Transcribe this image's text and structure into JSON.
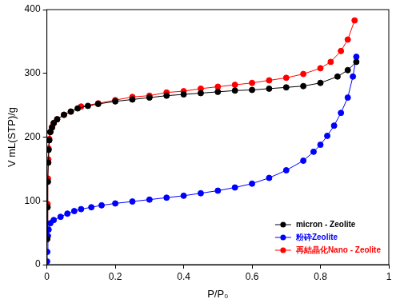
{
  "chart_data": {
    "type": "line",
    "x_label": "P/P₀",
    "y_label": "V mL(STP)/g",
    "xlim": [
      0,
      1
    ],
    "xticks": [
      0,
      0.2,
      0.4,
      0.6,
      0.8,
      1
    ],
    "ylim": [
      0,
      400
    ],
    "yticks": [
      0,
      100,
      200,
      300,
      400
    ],
    "grid": false,
    "legend": "lower right",
    "series": [
      {
        "name": "micron - Zeolite",
        "color": "#000000",
        "marker": "circle",
        "line_style": "solid",
        "x": [
          0.001,
          0.002,
          0.003,
          0.004,
          0.005,
          0.007,
          0.01,
          0.015,
          0.02,
          0.03,
          0.05,
          0.07,
          0.09,
          0.12,
          0.15,
          0.2,
          0.25,
          0.3,
          0.35,
          0.4,
          0.45,
          0.5,
          0.55,
          0.6,
          0.65,
          0.7,
          0.75,
          0.8,
          0.85,
          0.88,
          0.905
        ],
        "values": [
          40,
          90,
          130,
          160,
          180,
          195,
          208,
          215,
          222,
          228,
          235,
          240,
          245,
          249,
          252,
          256,
          259,
          262,
          265,
          267,
          269,
          271,
          273,
          274,
          276,
          278,
          280,
          285,
          295,
          305,
          318
        ]
      },
      {
        "name": "粉砕Zeolite",
        "color": "#0000ff",
        "marker": "circle",
        "line_style": "solid",
        "x": [
          0.0005,
          0.001,
          0.003,
          0.005,
          0.01,
          0.02,
          0.04,
          0.06,
          0.08,
          0.1,
          0.13,
          0.16,
          0.2,
          0.25,
          0.3,
          0.35,
          0.4,
          0.45,
          0.5,
          0.55,
          0.6,
          0.65,
          0.7,
          0.75,
          0.78,
          0.8,
          0.82,
          0.84,
          0.86,
          0.88,
          0.895,
          0.905
        ],
        "values": [
          5,
          20,
          45,
          55,
          65,
          70,
          75,
          80,
          84,
          87,
          90,
          93,
          96,
          99,
          102,
          105,
          108,
          112,
          116,
          121,
          127,
          136,
          148,
          163,
          177,
          188,
          202,
          218,
          238,
          262,
          295,
          326
        ]
      },
      {
        "name": "再結晶化Nano - Zeolite",
        "color": "#ff0000",
        "marker": "circle",
        "line_style": "solid",
        "x": [
          0.001,
          0.002,
          0.003,
          0.004,
          0.005,
          0.007,
          0.01,
          0.015,
          0.02,
          0.03,
          0.05,
          0.07,
          0.1,
          0.15,
          0.2,
          0.25,
          0.3,
          0.35,
          0.4,
          0.45,
          0.5,
          0.55,
          0.6,
          0.65,
          0.7,
          0.75,
          0.8,
          0.83,
          0.86,
          0.88,
          0.9
        ],
        "values": [
          45,
          95,
          135,
          165,
          182,
          197,
          208,
          216,
          222,
          228,
          235,
          240,
          248,
          253,
          258,
          263,
          265,
          270,
          272,
          276,
          279,
          282,
          285,
          289,
          293,
          299,
          308,
          318,
          335,
          353,
          383
        ]
      }
    ]
  }
}
